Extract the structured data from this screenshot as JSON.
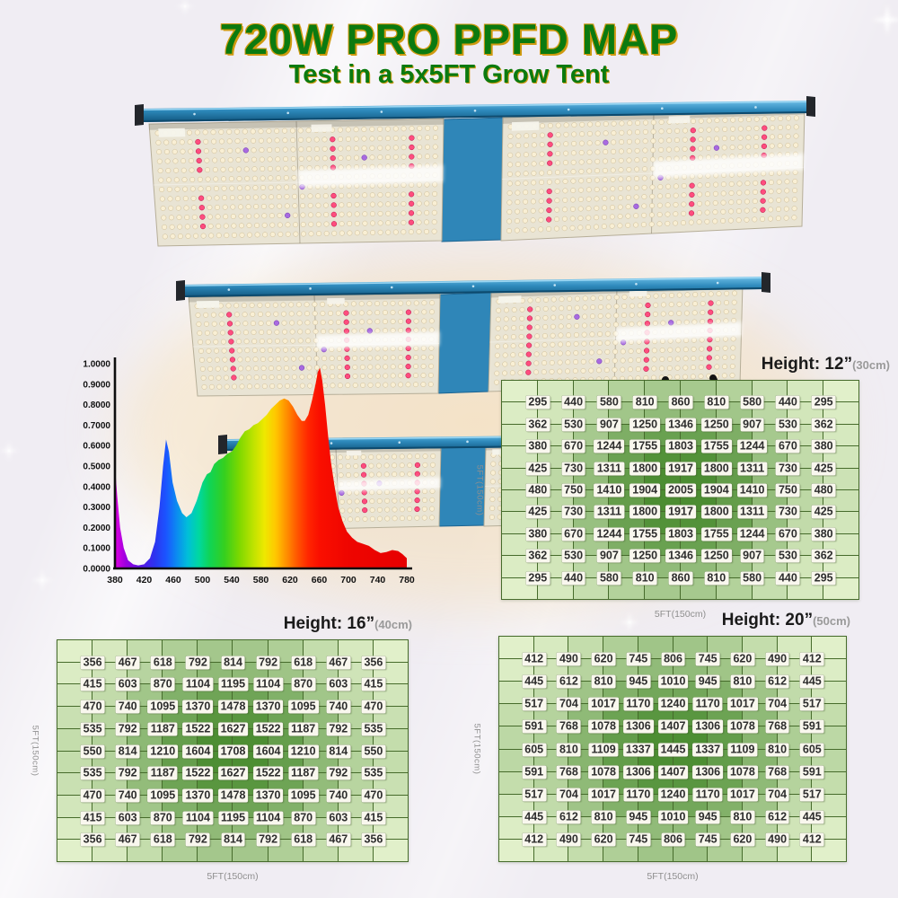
{
  "title": {
    "text": "720W PRO PPFD MAP"
  },
  "subtitle": {
    "text": "Test in a 5x5FT Grow Tent"
  },
  "colors": {
    "title_green": "#0b7a10",
    "title_shadow_gold": "#cf9a10",
    "heatmap_light": "#e1f0ca",
    "heatmap_dark": "#44882a",
    "grid_line": "#466b2b",
    "value_box_bg": "#f9f7ee",
    "value_text": "#2d2d2d",
    "rail_blue": "#2e8abc",
    "background": "#f0edf3"
  },
  "chart_data": [
    {
      "id": "spectrum",
      "type": "area",
      "title": "",
      "x_range": [
        380,
        780
      ],
      "y_range": [
        0,
        1
      ],
      "xticks": [
        380,
        420,
        460,
        500,
        540,
        580,
        620,
        660,
        700,
        740,
        780
      ],
      "yticks": [
        "1.0000",
        "0.9000",
        "0.8000",
        "0.7000",
        "0.6000",
        "0.5000",
        "0.4000",
        "0.3000",
        "0.2000",
        "0.1000",
        "0.0000"
      ],
      "grid": false,
      "legend": false,
      "points": [
        [
          380,
          0.5
        ],
        [
          383,
          0.36
        ],
        [
          387,
          0.2
        ],
        [
          392,
          0.1
        ],
        [
          398,
          0.04
        ],
        [
          405,
          0.02
        ],
        [
          412,
          0.015
        ],
        [
          420,
          0.02
        ],
        [
          428,
          0.05
        ],
        [
          435,
          0.13
        ],
        [
          441,
          0.3
        ],
        [
          446,
          0.5
        ],
        [
          450,
          0.63
        ],
        [
          454,
          0.57
        ],
        [
          459,
          0.42
        ],
        [
          465,
          0.33
        ],
        [
          472,
          0.27
        ],
        [
          478,
          0.25
        ],
        [
          485,
          0.27
        ],
        [
          492,
          0.33
        ],
        [
          500,
          0.42
        ],
        [
          506,
          0.46
        ],
        [
          511,
          0.47
        ],
        [
          516,
          0.51
        ],
        [
          522,
          0.53
        ],
        [
          528,
          0.54
        ],
        [
          534,
          0.56
        ],
        [
          540,
          0.57
        ],
        [
          546,
          0.6
        ],
        [
          552,
          0.64
        ],
        [
          558,
          0.67
        ],
        [
          564,
          0.68
        ],
        [
          570,
          0.7
        ],
        [
          576,
          0.71
        ],
        [
          582,
          0.73
        ],
        [
          588,
          0.75
        ],
        [
          594,
          0.78
        ],
        [
          600,
          0.8
        ],
        [
          606,
          0.82
        ],
        [
          612,
          0.83
        ],
        [
          618,
          0.82
        ],
        [
          624,
          0.79
        ],
        [
          630,
          0.75
        ],
        [
          636,
          0.72
        ],
        [
          640,
          0.72
        ],
        [
          645,
          0.75
        ],
        [
          650,
          0.82
        ],
        [
          655,
          0.9
        ],
        [
          658,
          0.96
        ],
        [
          661,
          0.98
        ],
        [
          664,
          0.92
        ],
        [
          668,
          0.8
        ],
        [
          672,
          0.65
        ],
        [
          676,
          0.52
        ],
        [
          681,
          0.4
        ],
        [
          686,
          0.3
        ],
        [
          692,
          0.23
        ],
        [
          698,
          0.18
        ],
        [
          705,
          0.15
        ],
        [
          712,
          0.13
        ],
        [
          720,
          0.12
        ],
        [
          728,
          0.11
        ],
        [
          736,
          0.09
        ],
        [
          744,
          0.075
        ],
        [
          752,
          0.08
        ],
        [
          760,
          0.09
        ],
        [
          768,
          0.085
        ],
        [
          774,
          0.07
        ],
        [
          780,
          0.05
        ]
      ],
      "palette": [
        {
          "wl": 380,
          "c": "#df00df"
        },
        {
          "wl": 395,
          "c": "#9b00e0"
        },
        {
          "wl": 415,
          "c": "#5a14e6"
        },
        {
          "wl": 435,
          "c": "#2b35f0"
        },
        {
          "wl": 450,
          "c": "#1b55ff"
        },
        {
          "wl": 465,
          "c": "#0b8cf0"
        },
        {
          "wl": 480,
          "c": "#00c0d8"
        },
        {
          "wl": 495,
          "c": "#00d8a0"
        },
        {
          "wl": 510,
          "c": "#10d455"
        },
        {
          "wl": 530,
          "c": "#35cf1f"
        },
        {
          "wl": 550,
          "c": "#7cd800"
        },
        {
          "wl": 570,
          "c": "#bfe300"
        },
        {
          "wl": 585,
          "c": "#eee800"
        },
        {
          "wl": 600,
          "c": "#ffc800"
        },
        {
          "wl": 615,
          "c": "#ff9000"
        },
        {
          "wl": 630,
          "c": "#ff5500"
        },
        {
          "wl": 645,
          "c": "#ff2600"
        },
        {
          "wl": 660,
          "c": "#fa0f00"
        },
        {
          "wl": 700,
          "c": "#ef0500"
        },
        {
          "wl": 780,
          "c": "#e60000"
        }
      ]
    },
    {
      "id": "ppfd_12in",
      "type": "heatmap",
      "height_label": "Height: 12”",
      "height_sub": "(30cm)",
      "x_axis_label": "5FT(150cm)",
      "y_axis_label": "5FT(150cm)",
      "values": [
        [
          295,
          440,
          580,
          810,
          860,
          810,
          580,
          440,
          295
        ],
        [
          362,
          530,
          907,
          1250,
          1346,
          1250,
          907,
          530,
          362
        ],
        [
          380,
          670,
          1244,
          1755,
          1803,
          1755,
          1244,
          670,
          380
        ],
        [
          425,
          730,
          1311,
          1800,
          1917,
          1800,
          1311,
          730,
          425
        ],
        [
          480,
          750,
          1410,
          1904,
          2005,
          1904,
          1410,
          750,
          480
        ],
        [
          425,
          730,
          1311,
          1800,
          1917,
          1800,
          1311,
          730,
          425
        ],
        [
          380,
          670,
          1244,
          1755,
          1803,
          1755,
          1244,
          670,
          380
        ],
        [
          362,
          530,
          907,
          1250,
          1346,
          1250,
          907,
          530,
          362
        ],
        [
          295,
          440,
          580,
          810,
          860,
          810,
          580,
          440,
          295
        ]
      ]
    },
    {
      "id": "ppfd_16in",
      "type": "heatmap",
      "height_label": "Height: 16”",
      "height_sub": "(40cm)",
      "x_axis_label": "5FT(150cm)",
      "y_axis_label": "5FT(150cm)",
      "values": [
        [
          356,
          467,
          618,
          792,
          814,
          792,
          618,
          467,
          356
        ],
        [
          415,
          603,
          870,
          1104,
          1195,
          1104,
          870,
          603,
          415
        ],
        [
          470,
          740,
          1095,
          1370,
          1478,
          1370,
          1095,
          740,
          470
        ],
        [
          535,
          792,
          1187,
          1522,
          1627,
          1522,
          1187,
          792,
          535
        ],
        [
          550,
          814,
          1210,
          1604,
          1708,
          1604,
          1210,
          814,
          550
        ],
        [
          535,
          792,
          1187,
          1522,
          1627,
          1522,
          1187,
          792,
          535
        ],
        [
          470,
          740,
          1095,
          1370,
          1478,
          1370,
          1095,
          740,
          470
        ],
        [
          415,
          603,
          870,
          1104,
          1195,
          1104,
          870,
          603,
          415
        ],
        [
          356,
          467,
          618,
          792,
          814,
          792,
          618,
          467,
          356
        ]
      ]
    },
    {
      "id": "ppfd_20in",
      "type": "heatmap",
      "height_label": "Height: 20”",
      "height_sub": "(50cm)",
      "x_axis_label": "5FT(150cm)",
      "y_axis_label": "5FT(150cm)",
      "values": [
        [
          412,
          490,
          620,
          745,
          806,
          745,
          620,
          490,
          412
        ],
        [
          445,
          612,
          810,
          945,
          1010,
          945,
          810,
          612,
          445
        ],
        [
          517,
          704,
          1017,
          1170,
          1240,
          1170,
          1017,
          704,
          517
        ],
        [
          591,
          768,
          1078,
          1306,
          1407,
          1306,
          1078,
          768,
          591
        ],
        [
          605,
          810,
          1109,
          1337,
          1445,
          1337,
          1109,
          810,
          605
        ],
        [
          591,
          768,
          1078,
          1306,
          1407,
          1306,
          1078,
          768,
          591
        ],
        [
          517,
          704,
          1017,
          1170,
          1240,
          1170,
          1017,
          704,
          517
        ],
        [
          445,
          612,
          810,
          945,
          1010,
          945,
          810,
          612,
          445
        ],
        [
          412,
          490,
          620,
          745,
          806,
          745,
          620,
          490,
          412
        ]
      ]
    }
  ]
}
